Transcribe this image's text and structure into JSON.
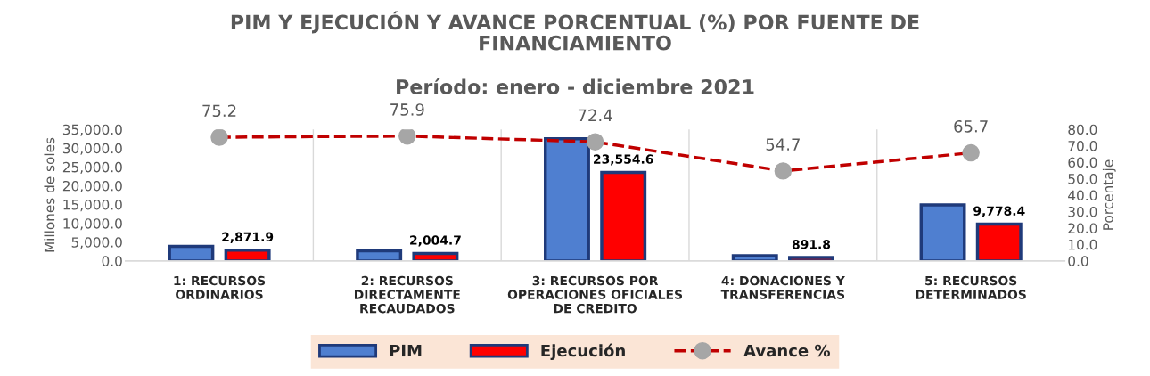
{
  "chart_data": {
    "type": "bar",
    "title": "PIM Y EJECUCIÓN Y AVANCE PORCENTUAL (%) POR FUENTE DE\nFINANCIAMIENTO",
    "subtitle": "Período: enero - diciembre 2021",
    "ylabel": "Millones de soles",
    "y2label": "Porcentaje",
    "categories": [
      "1: RECURSOS\nORDINARIOS",
      "2: RECURSOS\nDIRECTAMENTE\nRECAUDADOS",
      "3: RECURSOS POR\nOPERACIONES OFICIALES\nDE CREDITO",
      "4: DONACIONES Y\nTRANSFERENCIAS",
      "5: RECURSOS\nDETERMINADOS"
    ],
    "series": [
      {
        "name": "PIM",
        "color": "#4f7fd0",
        "values": [
          3900,
          2700,
          32500,
          1400,
          14900
        ]
      },
      {
        "name": "Ejecución",
        "color": "#ff0000",
        "values": [
          2871.9,
          2004.7,
          23554.6,
          891.8,
          9778.4
        ],
        "value_labels": [
          "2,871.9",
          "2,004.7",
          "23,554.6",
          "891.8",
          "9,778.4"
        ]
      },
      {
        "name": "Avance %",
        "type": "line",
        "axis": "y2",
        "color": "#c00000",
        "line_style": "dashed",
        "marker": "circle",
        "values": [
          75.2,
          75.9,
          72.4,
          54.7,
          65.7
        ],
        "value_labels": [
          "75.2",
          "75.9",
          "72.4",
          "54.7",
          "65.7"
        ]
      }
    ],
    "ylim": [
      0,
      35000
    ],
    "yticks": [
      {
        "value": 0,
        "label": "0.0"
      },
      {
        "value": 5000,
        "label": "5,000.0"
      },
      {
        "value": 10000,
        "label": "10,000.0"
      },
      {
        "value": 15000,
        "label": "15,000.0"
      },
      {
        "value": 20000,
        "label": "20,000.0"
      },
      {
        "value": 25000,
        "label": "25,000.0"
      },
      {
        "value": 30000,
        "label": "30,000.0"
      },
      {
        "value": 35000,
        "label": "35,000.0"
      }
    ],
    "y2lim": [
      0,
      80
    ],
    "y2ticks": [
      {
        "value": 0,
        "label": "0.0"
      },
      {
        "value": 10,
        "label": "10.0"
      },
      {
        "value": 20,
        "label": "20.0"
      },
      {
        "value": 30,
        "label": "30.0"
      },
      {
        "value": 40,
        "label": "40.0"
      },
      {
        "value": 50,
        "label": "50.0"
      },
      {
        "value": 60,
        "label": "60.0"
      },
      {
        "value": 70,
        "label": "70.0"
      },
      {
        "value": 80,
        "label": "80.0"
      }
    ],
    "grid": "x",
    "legend": "bottom"
  }
}
